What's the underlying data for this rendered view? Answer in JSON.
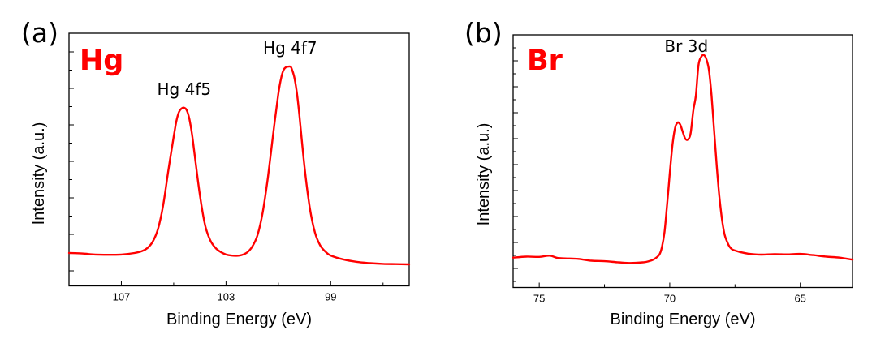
{
  "colors": {
    "curve": "#ff0000",
    "element_label": "#ff0000",
    "axis": "#000000"
  },
  "chart_data": [
    {
      "type": "line",
      "panel_label": "(a)",
      "element_label": "Hg",
      "xlabel": "Binding Energy (eV)",
      "ylabel": "Intensity (a.u.)",
      "xlim": [
        109,
        96
      ],
      "ylim": [
        0,
        1
      ],
      "x_reversed": true,
      "x_major_ticks": [
        107,
        103,
        99
      ],
      "x_tick_labels": [
        "107",
        "103",
        "99"
      ],
      "x_minor_ticks": [
        105,
        101,
        97
      ],
      "y_tick_labels_shown": false,
      "annotations": [
        {
          "text": "Hg 4f5",
          "x": 104.6,
          "y": 0.705
        },
        {
          "text": "Hg 4f7",
          "x": 100.55,
          "y": 0.868
        }
      ],
      "series": [
        {
          "name": "Hg",
          "x": [
            109.0,
            108.5,
            108.0,
            107.5,
            107.0,
            106.5,
            106.2,
            106.0,
            105.8,
            105.6,
            105.4,
            105.2,
            105.0,
            104.9,
            104.8,
            104.7,
            104.6,
            104.5,
            104.4,
            104.3,
            104.2,
            104.0,
            103.8,
            103.6,
            103.4,
            103.2,
            103.0,
            102.8,
            102.6,
            102.4,
            102.2,
            102.0,
            101.8,
            101.6,
            101.4,
            101.2,
            101.0,
            100.9,
            100.8,
            100.7,
            100.6,
            100.55,
            100.5,
            100.4,
            100.3,
            100.2,
            100.0,
            99.8,
            99.6,
            99.4,
            99.2,
            99.0,
            98.5,
            98.0,
            97.5,
            97.0,
            96.5,
            96.0
          ],
          "y": [
            0.13,
            0.128,
            0.124,
            0.123,
            0.124,
            0.13,
            0.138,
            0.15,
            0.175,
            0.225,
            0.32,
            0.46,
            0.59,
            0.65,
            0.688,
            0.702,
            0.705,
            0.695,
            0.66,
            0.6,
            0.52,
            0.36,
            0.24,
            0.18,
            0.15,
            0.134,
            0.124,
            0.12,
            0.119,
            0.122,
            0.132,
            0.155,
            0.2,
            0.29,
            0.43,
            0.6,
            0.76,
            0.82,
            0.855,
            0.866,
            0.868,
            0.868,
            0.862,
            0.83,
            0.77,
            0.68,
            0.47,
            0.31,
            0.21,
            0.16,
            0.135,
            0.12,
            0.104,
            0.095,
            0.09,
            0.087,
            0.086,
            0.085
          ]
        }
      ]
    },
    {
      "type": "line",
      "panel_label": "(b)",
      "element_label": "Br",
      "xlabel": "Binding Energy (eV)",
      "ylabel": "Intensity (a.u.)",
      "xlim": [
        76,
        63
      ],
      "ylim": [
        0,
        1
      ],
      "x_reversed": true,
      "x_major_ticks": [
        75,
        70,
        65
      ],
      "x_tick_labels": [
        "75",
        "70",
        "65"
      ],
      "x_minor_ticks": [
        72.5,
        67.5
      ],
      "y_tick_labels_shown": false,
      "annotations": [
        {
          "text": "Br 3d",
          "x": 68.9,
          "y": 0.92
        }
      ],
      "series": [
        {
          "name": "Br",
          "x": [
            76.0,
            75.5,
            75.0,
            74.6,
            74.3,
            74.0,
            73.5,
            73.0,
            72.5,
            72.0,
            71.5,
            71.0,
            70.8,
            70.6,
            70.4,
            70.3,
            70.2,
            70.1,
            70.0,
            69.9,
            69.8,
            69.7,
            69.6,
            69.5,
            69.4,
            69.3,
            69.2,
            69.1,
            69.0,
            68.9,
            68.8,
            68.7,
            68.6,
            68.5,
            68.4,
            68.3,
            68.2,
            68.1,
            68.0,
            67.9,
            67.8,
            67.7,
            67.6,
            67.5,
            67.3,
            67.0,
            66.5,
            66.0,
            65.5,
            65.0,
            64.5,
            64.0,
            63.5,
            63.0
          ],
          "y": [
            0.118,
            0.122,
            0.121,
            0.126,
            0.117,
            0.115,
            0.113,
            0.106,
            0.104,
            0.1,
            0.097,
            0.1,
            0.104,
            0.112,
            0.13,
            0.16,
            0.22,
            0.33,
            0.45,
            0.56,
            0.63,
            0.653,
            0.645,
            0.615,
            0.588,
            0.586,
            0.61,
            0.7,
            0.76,
            0.88,
            0.912,
            0.92,
            0.905,
            0.86,
            0.76,
            0.62,
            0.48,
            0.36,
            0.27,
            0.21,
            0.18,
            0.16,
            0.15,
            0.146,
            0.14,
            0.134,
            0.13,
            0.132,
            0.131,
            0.133,
            0.128,
            0.122,
            0.118,
            0.11
          ]
        }
      ]
    }
  ]
}
